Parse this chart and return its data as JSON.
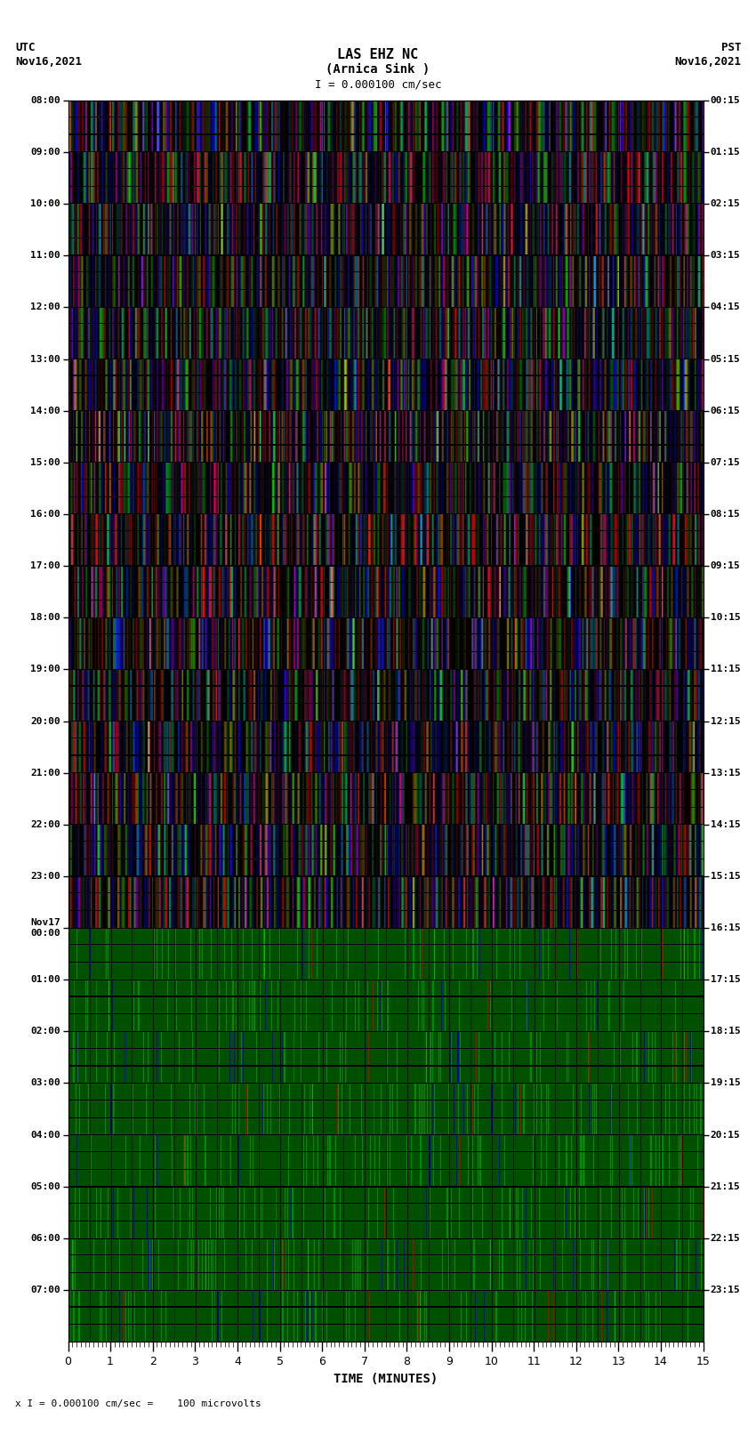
{
  "title_line1": "LAS EHZ NC",
  "title_line2": "(Arnica Sink )",
  "scale_label": "I = 0.000100 cm/sec",
  "bottom_scale_label": "x I = 0.000100 cm/sec =    100 microvolts",
  "utc_label": "UTC\nNov16,2021",
  "pst_label": "PST\nNov16,2021",
  "left_times": [
    "08:00",
    "09:00",
    "10:00",
    "11:00",
    "12:00",
    "13:00",
    "14:00",
    "15:00",
    "16:00",
    "17:00",
    "18:00",
    "19:00",
    "20:00",
    "21:00",
    "22:00",
    "23:00",
    "Nov17\n00:00",
    "01:00",
    "02:00",
    "03:00",
    "04:00",
    "05:00",
    "06:00",
    "07:00"
  ],
  "right_times": [
    "00:15",
    "01:15",
    "02:15",
    "03:15",
    "04:15",
    "05:15",
    "06:15",
    "07:15",
    "08:15",
    "09:15",
    "10:15",
    "11:15",
    "12:15",
    "13:15",
    "14:15",
    "15:15",
    "16:15",
    "17:15",
    "18:15",
    "19:15",
    "20:15",
    "21:15",
    "22:15",
    "23:15"
  ],
  "xlabel": "TIME (MINUTES)",
  "xmin": 0,
  "xmax": 15,
  "bg_color": "#ffffff",
  "transition_row": 16,
  "total_rows": 24,
  "fig_width": 8.5,
  "fig_height": 16.13,
  "dpi": 100
}
